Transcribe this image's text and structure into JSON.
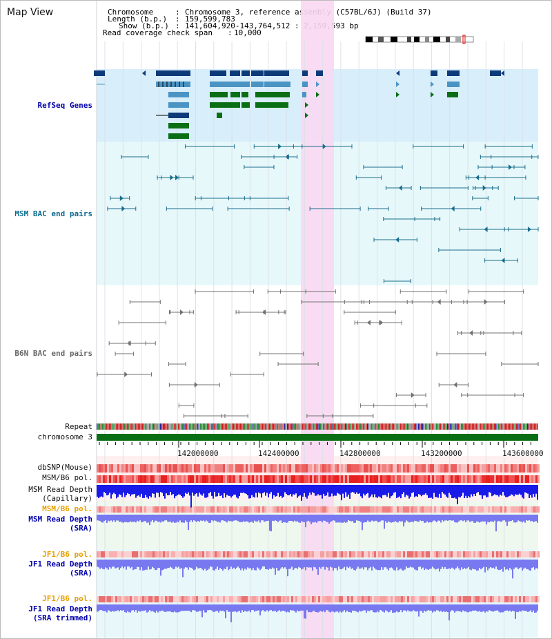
{
  "view_title": "Map View",
  "header": {
    "chromosome_key": "Chromosome",
    "chromosome_value": "Chromosome 3, reference assembly (C57BL/6J) (Build 37)",
    "length_key": "Length (b.p.)",
    "length_value": "159,599,783",
    "show_key": "Show (b.p.)",
    "show_value": "141,604,920-143,764,512 : 2,159,593 bp",
    "read_span_key": "Read coverage check span",
    "read_span_value": "10,000"
  },
  "tracks": {
    "refseq": "RefSeq Genes",
    "msm_bac": "MSM BAC end pairs",
    "b6n_bac": "B6N BAC end pairs",
    "repeat": "Repeat",
    "chromosome": "chromosome 3",
    "dbsnp": "dbSNP(Mouse)",
    "msm_b6_pol_1": "MSM/B6 pol.",
    "msm_read_depth_cap_1": "MSM Read Depth",
    "msm_read_depth_cap_2": "(Capillary)",
    "msm_b6_pol_2": "MSM/B6 pol.",
    "msm_read_depth_sra_1": "MSM Read Depth",
    "msm_read_depth_sra_2": "(SRA)",
    "jf1_b6_pol_1": "JF1/B6 pol.",
    "jf1_read_depth_sra_1": "JF1 Read Depth",
    "jf1_read_depth_sra_2": "(SRA)",
    "jf1_b6_pol_2": "JF1/B6 pol.",
    "jf1_read_depth_trim_1": "JF1 Read Depth",
    "jf1_read_depth_trim_2": "(SRA trimmed)"
  },
  "axis_ticks": [
    "142000000",
    "142400000",
    "142800000",
    "143200000",
    "143600000"
  ],
  "colors": {
    "highlight": "#f8d8f2",
    "refseq_bg": "#d8eefa",
    "refseq_dark": "#0d3a78",
    "refseq_mid": "#4a94c4",
    "refseq_green": "#0a6e14",
    "msm_bg": "#e6f8fa",
    "msm_line": "#1a6c8c",
    "b6n_line": "#707070",
    "depth_blue": "#1a1ae8",
    "depth_light": "#7878f0",
    "chromosome": "#0a6e14"
  }
}
